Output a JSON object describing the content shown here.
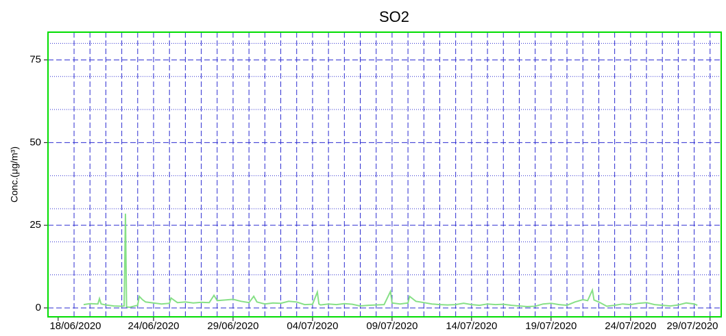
{
  "chart_data": {
    "type": "line",
    "title": "SO2",
    "y_label": "Conc.(μg/m³)",
    "xlim": [
      -0.64,
      41.7
    ],
    "ylim": [
      -2.7,
      83.4
    ],
    "yticks": [
      0,
      25,
      50,
      75
    ],
    "minor_yticks": [
      10,
      20,
      30,
      40,
      60,
      70,
      80
    ],
    "xticks": [
      {
        "value": 0,
        "label": "18/06/2020"
      },
      {
        "value": 6,
        "label": "24/06/2020"
      },
      {
        "value": 11,
        "label": "29/06/2020"
      },
      {
        "value": 16,
        "label": "04/07/2020"
      },
      {
        "value": 21,
        "label": "09/07/2020"
      },
      {
        "value": 26,
        "label": "14/07/2020"
      },
      {
        "value": 31,
        "label": "19/07/2020"
      },
      {
        "value": 36,
        "label": "24/07/2020"
      },
      {
        "value": 41,
        "label": "29/07/2020"
      }
    ],
    "x_grid": [
      1,
      2,
      3,
      4,
      5,
      6,
      7,
      8,
      9,
      10,
      11,
      12,
      13,
      14,
      15,
      16,
      17,
      18,
      19,
      20,
      21,
      22,
      23,
      24,
      25,
      26,
      27,
      28,
      29,
      30,
      31,
      32,
      33,
      34,
      35,
      36,
      37,
      38,
      39,
      40,
      41
    ],
    "grid": true,
    "grid_color": "#2a2ad0",
    "frame_color": "#00dd00",
    "series": [
      {
        "name": "SO2",
        "color": "#86e086",
        "x": [
          1.6,
          2.0,
          2.5,
          2.6,
          2.7,
          3.0,
          3.5,
          4.0,
          4.15,
          4.23,
          4.3,
          4.5,
          5.0,
          5.1,
          5.3,
          5.5,
          6.0,
          6.5,
          7.0,
          7.1,
          7.5,
          8.0,
          8.5,
          9.0,
          9.5,
          9.8,
          10.0,
          10.5,
          11.0,
          11.5,
          12.0,
          12.3,
          12.5,
          13.0,
          13.5,
          14.0,
          14.5,
          15.0,
          15.5,
          16.0,
          16.3,
          16.4,
          16.5,
          17.0,
          17.5,
          18.0,
          18.5,
          19.0,
          19.5,
          20.0,
          20.5,
          20.9,
          21.0,
          21.5,
          22.0,
          22.1,
          22.5,
          23.0,
          23.5,
          24.0,
          24.5,
          25.0,
          25.5,
          26.0,
          26.5,
          27.0,
          27.5,
          28.0,
          28.5,
          29.0,
          29.5,
          30.0,
          30.5,
          31.0,
          31.5,
          32.0,
          32.5,
          33.0,
          33.3,
          33.6,
          33.7,
          34.0,
          34.5,
          35.0,
          35.5,
          36.0,
          36.5,
          37.0,
          37.5,
          38.0,
          38.5,
          39.0,
          39.5,
          40.0,
          40.2
        ],
        "values": [
          1.0,
          1.3,
          1.2,
          2.8,
          1.2,
          0.9,
          0.6,
          0.5,
          0.6,
          28.5,
          0.3,
          0.2,
          0.8,
          3.5,
          2.5,
          1.8,
          1.5,
          1.2,
          1.4,
          3.0,
          1.6,
          1.8,
          1.5,
          1.7,
          1.6,
          3.8,
          2.2,
          2.4,
          2.6,
          2.0,
          1.6,
          3.5,
          1.8,
          1.2,
          1.5,
          1.4,
          2.0,
          1.8,
          1.0,
          1.1,
          4.8,
          1.2,
          0.9,
          1.2,
          1.0,
          1.3,
          1.1,
          0.6,
          0.8,
          0.9,
          1.0,
          5.0,
          1.5,
          1.2,
          1.5,
          3.5,
          2.0,
          1.6,
          1.2,
          1.0,
          0.9,
          1.0,
          1.4,
          1.0,
          0.8,
          1.2,
          1.0,
          1.1,
          0.8,
          0.6,
          0.4,
          0.5,
          1.2,
          1.4,
          1.0,
          0.8,
          1.8,
          2.5,
          2.2,
          5.4,
          2.4,
          1.8,
          0.5,
          0.8,
          1.2,
          1.0,
          1.4,
          1.6,
          1.0,
          0.8,
          0.6,
          0.9,
          1.5,
          1.2,
          0.8
        ]
      }
    ]
  }
}
